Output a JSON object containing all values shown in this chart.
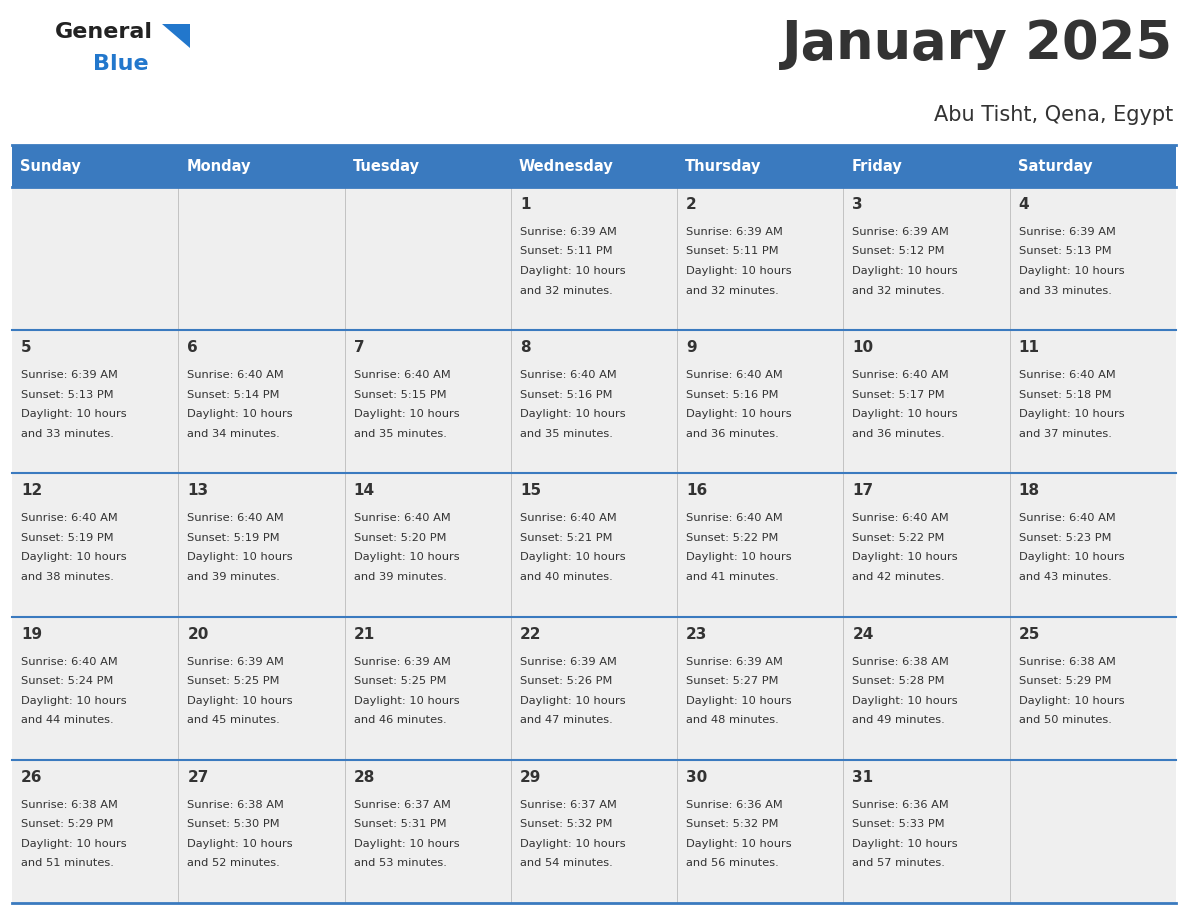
{
  "title": "January 2025",
  "subtitle": "Abu Tisht, Qena, Egypt",
  "header_bg": "#3a7abf",
  "header_text_color": "#ffffff",
  "cell_bg_light": "#efefef",
  "border_color": "#3a7abf",
  "text_color": "#333333",
  "days_of_week": [
    "Sunday",
    "Monday",
    "Tuesday",
    "Wednesday",
    "Thursday",
    "Friday",
    "Saturday"
  ],
  "calendar_data": [
    [
      {
        "day": "",
        "sunrise": "",
        "sunset": "",
        "daylight": ""
      },
      {
        "day": "",
        "sunrise": "",
        "sunset": "",
        "daylight": ""
      },
      {
        "day": "",
        "sunrise": "",
        "sunset": "",
        "daylight": ""
      },
      {
        "day": "1",
        "sunrise": "6:39 AM",
        "sunset": "5:11 PM",
        "daylight": "10 hours and 32 minutes."
      },
      {
        "day": "2",
        "sunrise": "6:39 AM",
        "sunset": "5:11 PM",
        "daylight": "10 hours and 32 minutes."
      },
      {
        "day": "3",
        "sunrise": "6:39 AM",
        "sunset": "5:12 PM",
        "daylight": "10 hours and 32 minutes."
      },
      {
        "day": "4",
        "sunrise": "6:39 AM",
        "sunset": "5:13 PM",
        "daylight": "10 hours and 33 minutes."
      }
    ],
    [
      {
        "day": "5",
        "sunrise": "6:39 AM",
        "sunset": "5:13 PM",
        "daylight": "10 hours and 33 minutes."
      },
      {
        "day": "6",
        "sunrise": "6:40 AM",
        "sunset": "5:14 PM",
        "daylight": "10 hours and 34 minutes."
      },
      {
        "day": "7",
        "sunrise": "6:40 AM",
        "sunset": "5:15 PM",
        "daylight": "10 hours and 35 minutes."
      },
      {
        "day": "8",
        "sunrise": "6:40 AM",
        "sunset": "5:16 PM",
        "daylight": "10 hours and 35 minutes."
      },
      {
        "day": "9",
        "sunrise": "6:40 AM",
        "sunset": "5:16 PM",
        "daylight": "10 hours and 36 minutes."
      },
      {
        "day": "10",
        "sunrise": "6:40 AM",
        "sunset": "5:17 PM",
        "daylight": "10 hours and 36 minutes."
      },
      {
        "day": "11",
        "sunrise": "6:40 AM",
        "sunset": "5:18 PM",
        "daylight": "10 hours and 37 minutes."
      }
    ],
    [
      {
        "day": "12",
        "sunrise": "6:40 AM",
        "sunset": "5:19 PM",
        "daylight": "10 hours and 38 minutes."
      },
      {
        "day": "13",
        "sunrise": "6:40 AM",
        "sunset": "5:19 PM",
        "daylight": "10 hours and 39 minutes."
      },
      {
        "day": "14",
        "sunrise": "6:40 AM",
        "sunset": "5:20 PM",
        "daylight": "10 hours and 39 minutes."
      },
      {
        "day": "15",
        "sunrise": "6:40 AM",
        "sunset": "5:21 PM",
        "daylight": "10 hours and 40 minutes."
      },
      {
        "day": "16",
        "sunrise": "6:40 AM",
        "sunset": "5:22 PM",
        "daylight": "10 hours and 41 minutes."
      },
      {
        "day": "17",
        "sunrise": "6:40 AM",
        "sunset": "5:22 PM",
        "daylight": "10 hours and 42 minutes."
      },
      {
        "day": "18",
        "sunrise": "6:40 AM",
        "sunset": "5:23 PM",
        "daylight": "10 hours and 43 minutes."
      }
    ],
    [
      {
        "day": "19",
        "sunrise": "6:40 AM",
        "sunset": "5:24 PM",
        "daylight": "10 hours and 44 minutes."
      },
      {
        "day": "20",
        "sunrise": "6:39 AM",
        "sunset": "5:25 PM",
        "daylight": "10 hours and 45 minutes."
      },
      {
        "day": "21",
        "sunrise": "6:39 AM",
        "sunset": "5:25 PM",
        "daylight": "10 hours and 46 minutes."
      },
      {
        "day": "22",
        "sunrise": "6:39 AM",
        "sunset": "5:26 PM",
        "daylight": "10 hours and 47 minutes."
      },
      {
        "day": "23",
        "sunrise": "6:39 AM",
        "sunset": "5:27 PM",
        "daylight": "10 hours and 48 minutes."
      },
      {
        "day": "24",
        "sunrise": "6:38 AM",
        "sunset": "5:28 PM",
        "daylight": "10 hours and 49 minutes."
      },
      {
        "day": "25",
        "sunrise": "6:38 AM",
        "sunset": "5:29 PM",
        "daylight": "10 hours and 50 minutes."
      }
    ],
    [
      {
        "day": "26",
        "sunrise": "6:38 AM",
        "sunset": "5:29 PM",
        "daylight": "10 hours and 51 minutes."
      },
      {
        "day": "27",
        "sunrise": "6:38 AM",
        "sunset": "5:30 PM",
        "daylight": "10 hours and 52 minutes."
      },
      {
        "day": "28",
        "sunrise": "6:37 AM",
        "sunset": "5:31 PM",
        "daylight": "10 hours and 53 minutes."
      },
      {
        "day": "29",
        "sunrise": "6:37 AM",
        "sunset": "5:32 PM",
        "daylight": "10 hours and 54 minutes."
      },
      {
        "day": "30",
        "sunrise": "6:36 AM",
        "sunset": "5:32 PM",
        "daylight": "10 hours and 56 minutes."
      },
      {
        "day": "31",
        "sunrise": "6:36 AM",
        "sunset": "5:33 PM",
        "daylight": "10 hours and 57 minutes."
      },
      {
        "day": "",
        "sunrise": "",
        "sunset": "",
        "daylight": ""
      }
    ]
  ]
}
